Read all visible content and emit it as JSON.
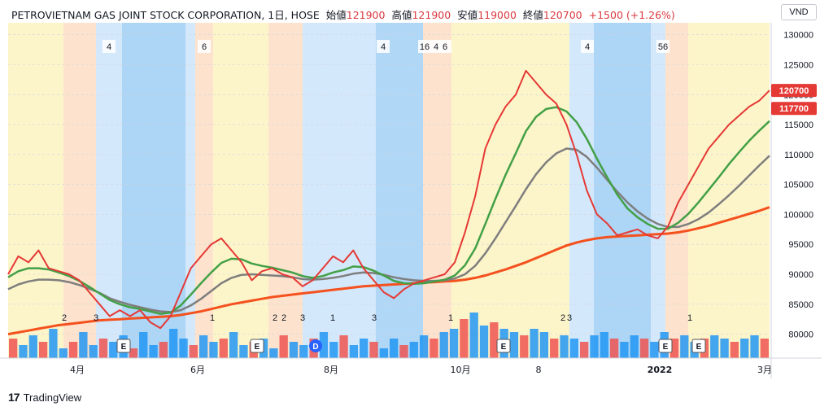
{
  "header": {
    "title": "PETROVIETNAM GAS JOINT STOCK CORPORATION, 1日, HOSE",
    "open_label": "始値",
    "open": "121900",
    "high_label": "高値",
    "high": "121900",
    "low_label": "安値",
    "low": "119000",
    "close_label": "終値",
    "close": "120700",
    "change": "+1500 (+1.26%)"
  },
  "brand": "TradingView",
  "colors": {
    "price": "#e53935",
    "ma_fast": "#43a047",
    "ma_mid": "#7e7e7e",
    "ma_long": "#f4511e",
    "ma_blue": "#283593",
    "band_yellow": "#fdf4c4",
    "band_orange": "#fde0c8",
    "band_blue": "#cfe6fb",
    "band_darkblue": "#a9d3f5",
    "up_bar": "#2196f3",
    "down_bar": "#ef5350"
  },
  "chart_data": {
    "type": "line",
    "title": "PETROVIETNAM GAS JOINT STOCK CORPORATION, 1日, HOSE",
    "unit": "VND",
    "y_ticks": [
      "130000",
      "125000",
      "120000",
      "115000",
      "110000",
      "105000",
      "100000",
      "95000",
      "90000",
      "85000",
      "80000"
    ],
    "ylim": [
      76000,
      132000
    ],
    "x_ticks": [
      "4月",
      "6月",
      "8月",
      "10月",
      "8",
      "2022",
      "3月"
    ],
    "price_labels": [
      "120700",
      "117700"
    ],
    "price_label_values": [
      120700,
      117700
    ],
    "series": [
      {
        "key": "price",
        "values": [
          90000,
          93000,
          92000,
          94000,
          91000,
          90500,
          90000,
          89000,
          87000,
          85000,
          83000,
          84000,
          83000,
          84000,
          82000,
          81000,
          83000,
          87000,
          91000,
          93000,
          95000,
          96000,
          94000,
          92000,
          89000,
          90500,
          91000,
          90000,
          89500,
          88000,
          89000,
          91000,
          93000,
          92000,
          94000,
          91000,
          89000,
          87000,
          86000,
          87500,
          88500,
          89000,
          89500,
          90000,
          92000,
          97000,
          103000,
          111000,
          115000,
          118000,
          120000,
          124000,
          122000,
          120000,
          118500,
          115000,
          110000,
          104000,
          100000,
          98500,
          96500,
          97000,
          97500,
          96500,
          96000,
          98000,
          102000,
          105000,
          108000,
          111000,
          113000,
          115000,
          116500,
          118000,
          119000,
          120700
        ]
      },
      {
        "key": "ma_fast",
        "values": [
          89500,
          90500,
          91000,
          91000,
          90800,
          90300,
          89700,
          88900,
          87900,
          86800,
          85700,
          85000,
          84500,
          84200,
          83800,
          83400,
          83600,
          84800,
          86600,
          88500,
          90300,
          91900,
          92600,
          92500,
          91800,
          91400,
          91100,
          90700,
          90300,
          89700,
          89400,
          89700,
          90300,
          90700,
          91300,
          91200,
          90600,
          89800,
          88900,
          88500,
          88400,
          88500,
          88800,
          89100,
          89800,
          91500,
          94300,
          98400,
          102600,
          106600,
          110200,
          113900,
          116300,
          117600,
          117900,
          117200,
          115400,
          112600,
          109300,
          106200,
          103300,
          101000,
          99500,
          98400,
          97600,
          97600,
          98600,
          100100,
          102000,
          104100,
          106200,
          108400,
          110400,
          112300,
          114000,
          115600
        ]
      },
      {
        "key": "ma_mid",
        "values": [
          87500,
          88300,
          88800,
          89100,
          89100,
          89000,
          88700,
          88200,
          87600,
          86900,
          86000,
          85400,
          84900,
          84500,
          84100,
          83800,
          83700,
          84000,
          84800,
          85900,
          87200,
          88500,
          89400,
          89900,
          90000,
          89900,
          89800,
          89700,
          89500,
          89200,
          89100,
          89200,
          89400,
          89700,
          90100,
          90300,
          90200,
          89900,
          89500,
          89200,
          89000,
          88900,
          88900,
          89000,
          89300,
          90000,
          91400,
          93500,
          96000,
          98700,
          101400,
          104200,
          106700,
          108700,
          110200,
          111000,
          110800,
          109600,
          107800,
          105800,
          103800,
          102000,
          100500,
          99300,
          98400,
          97900,
          97900,
          98400,
          99200,
          100300,
          101700,
          103200,
          104800,
          106500,
          108200,
          109800
        ]
      },
      {
        "key": "ma_long",
        "values": [
          80000,
          80300,
          80600,
          80900,
          81200,
          81500,
          81700,
          81900,
          82100,
          82300,
          82400,
          82500,
          82600,
          82700,
          82800,
          82900,
          83000,
          83200,
          83500,
          83800,
          84200,
          84600,
          85000,
          85300,
          85600,
          85900,
          86200,
          86400,
          86600,
          86800,
          87000,
          87200,
          87400,
          87600,
          87800,
          88000,
          88100,
          88200,
          88300,
          88400,
          88500,
          88600,
          88700,
          88800,
          88900,
          89100,
          89400,
          89800,
          90300,
          90800,
          91400,
          92000,
          92700,
          93400,
          94100,
          94800,
          95300,
          95700,
          96000,
          96200,
          96300,
          96400,
          96500,
          96600,
          96700,
          96800,
          97000,
          97300,
          97700,
          98100,
          98600,
          99100,
          99600,
          100100,
          100600,
          101200
        ]
      }
    ],
    "band_numbers": [
      "4",
      "6",
      "4",
      "16",
      "4",
      "6",
      "4",
      "56"
    ],
    "event_numbers": [
      "2",
      "3",
      "1",
      "2",
      "2",
      "3",
      "1",
      "3",
      "1",
      "2",
      "3",
      "1"
    ],
    "event_markers": [
      "E",
      "E",
      "D",
      "E",
      "E",
      "E",
      "E"
    ],
    "volume": [
      6,
      4,
      7,
      5,
      9,
      3,
      5,
      8,
      4,
      6,
      5,
      7,
      3,
      8,
      4,
      5,
      9,
      6,
      4,
      7,
      5,
      6,
      8,
      4,
      5,
      6,
      3,
      7,
      5,
      4,
      6,
      8,
      5,
      7,
      4,
      6,
      5,
      3,
      6,
      4,
      5,
      7,
      6,
      8,
      9,
      12,
      14,
      10,
      11,
      9,
      8,
      7,
      9,
      8,
      6,
      7,
      6,
      5,
      7,
      8,
      6,
      5,
      7,
      6,
      5,
      8,
      6,
      7,
      5,
      6,
      7,
      6,
      5,
      6,
      7,
      6
    ]
  }
}
